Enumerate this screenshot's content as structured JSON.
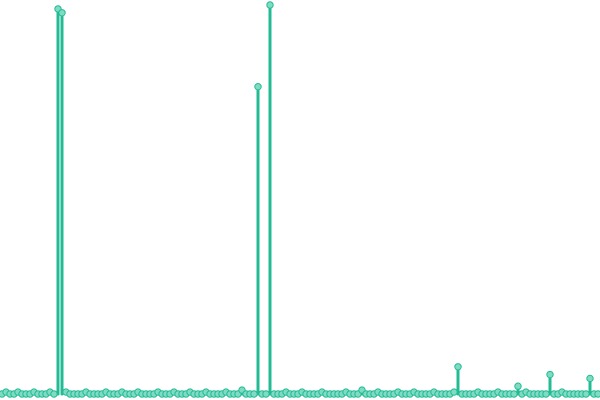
{
  "chart_data": {
    "type": "lollipop",
    "color": "#22bb93",
    "ylim": [
      0,
      100
    ],
    "values": [
      0,
      0.5,
      0,
      0,
      0.5,
      0,
      0,
      0,
      0.5,
      0,
      0,
      0,
      0.5,
      0,
      99,
      98,
      0.5,
      0,
      0,
      0,
      0,
      0.5,
      0,
      0,
      0,
      0,
      0.5,
      0,
      0,
      0,
      0.5,
      0,
      0,
      0,
      0.5,
      0,
      0,
      0,
      0,
      0.5,
      0,
      0,
      0,
      0.5,
      0,
      0,
      0,
      0.5,
      0,
      0,
      0,
      0.5,
      0,
      0,
      0,
      0,
      0.5,
      0,
      0,
      0,
      1,
      0,
      0,
      0,
      79,
      0,
      0,
      100,
      0,
      0,
      0,
      0.5,
      0,
      0,
      0,
      0.5,
      0,
      0,
      0,
      0,
      0.5,
      0,
      0,
      0,
      0,
      0,
      0.5,
      0,
      0,
      0,
      1,
      0,
      0,
      0,
      0.5,
      0,
      0,
      0,
      0,
      0.5,
      0,
      0,
      0,
      0.5,
      0,
      0,
      0,
      0,
      0.5,
      0,
      0,
      0,
      0,
      0.5,
      7,
      0,
      0,
      0,
      0,
      0.5,
      0,
      0,
      0,
      0,
      0.5,
      0,
      0,
      0,
      0,
      2,
      0,
      0.5,
      0,
      0,
      0,
      0,
      0,
      5,
      0,
      0,
      0.5,
      0,
      0,
      0,
      0,
      0,
      0,
      4,
      0,
      0
    ]
  }
}
